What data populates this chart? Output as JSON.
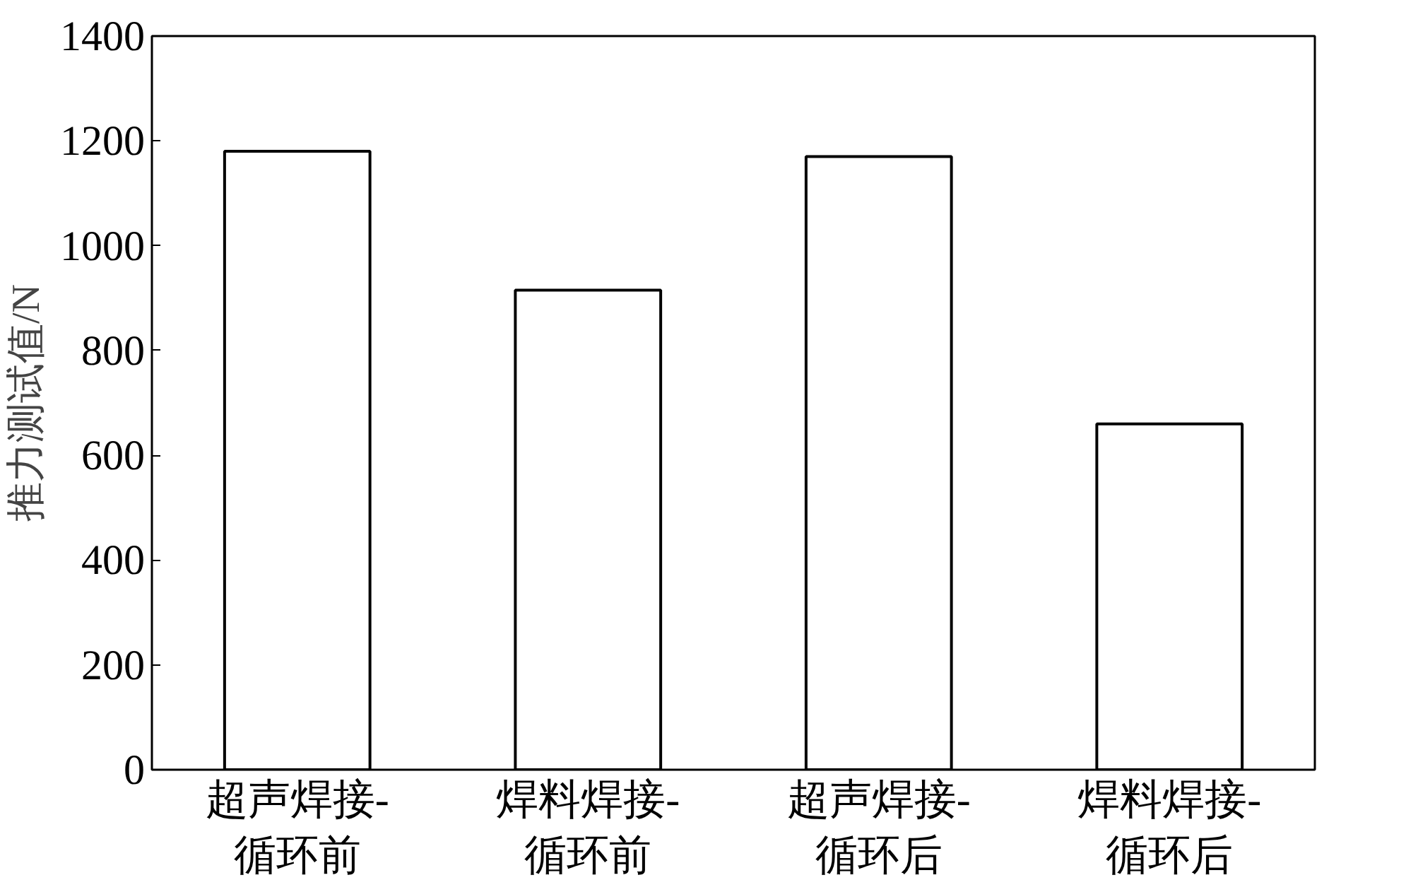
{
  "chart_data": {
    "type": "bar",
    "ylabel": "推力测试值/N",
    "categories": [
      "超声焊接-\n循环前",
      "焊料焊接-\n循环前",
      "超声焊接-\n循环后",
      "焊料焊接-\n循环后"
    ],
    "values": [
      1180,
      915,
      1170,
      660
    ],
    "color": "#ffffff",
    "ylim": [
      0,
      1400
    ],
    "yticks": [
      0,
      200,
      400,
      600,
      800,
      1000,
      1200,
      1400
    ],
    "grid": false
  }
}
